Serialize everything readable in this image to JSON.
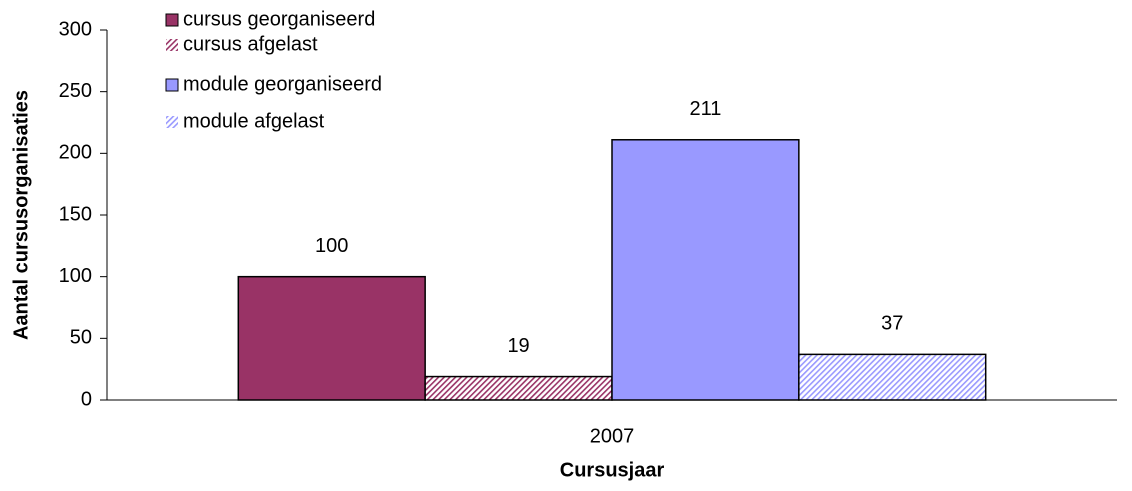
{
  "chart_data": {
    "type": "bar",
    "categories": [
      "2007"
    ],
    "series": [
      {
        "name": "cursus georganiseerd",
        "color": "#993366",
        "hatched": false,
        "values": [
          100
        ]
      },
      {
        "name": "cursus afgelast",
        "color": "#993366",
        "hatched": true,
        "values": [
          19
        ]
      },
      {
        "name": "module georganiseerd",
        "color": "#9999ff",
        "hatched": false,
        "values": [
          211
        ]
      },
      {
        "name": "module afgelast",
        "color": "#9999ff",
        "hatched": true,
        "values": [
          37
        ]
      }
    ],
    "ylim": [
      0,
      300
    ],
    "yticks": [
      0,
      50,
      100,
      150,
      200,
      250,
      300
    ],
    "xlabel": "Cursusjaar",
    "ylabel": "Aantal cursusorganisaties",
    "legend": "upper left",
    "grid": false
  }
}
